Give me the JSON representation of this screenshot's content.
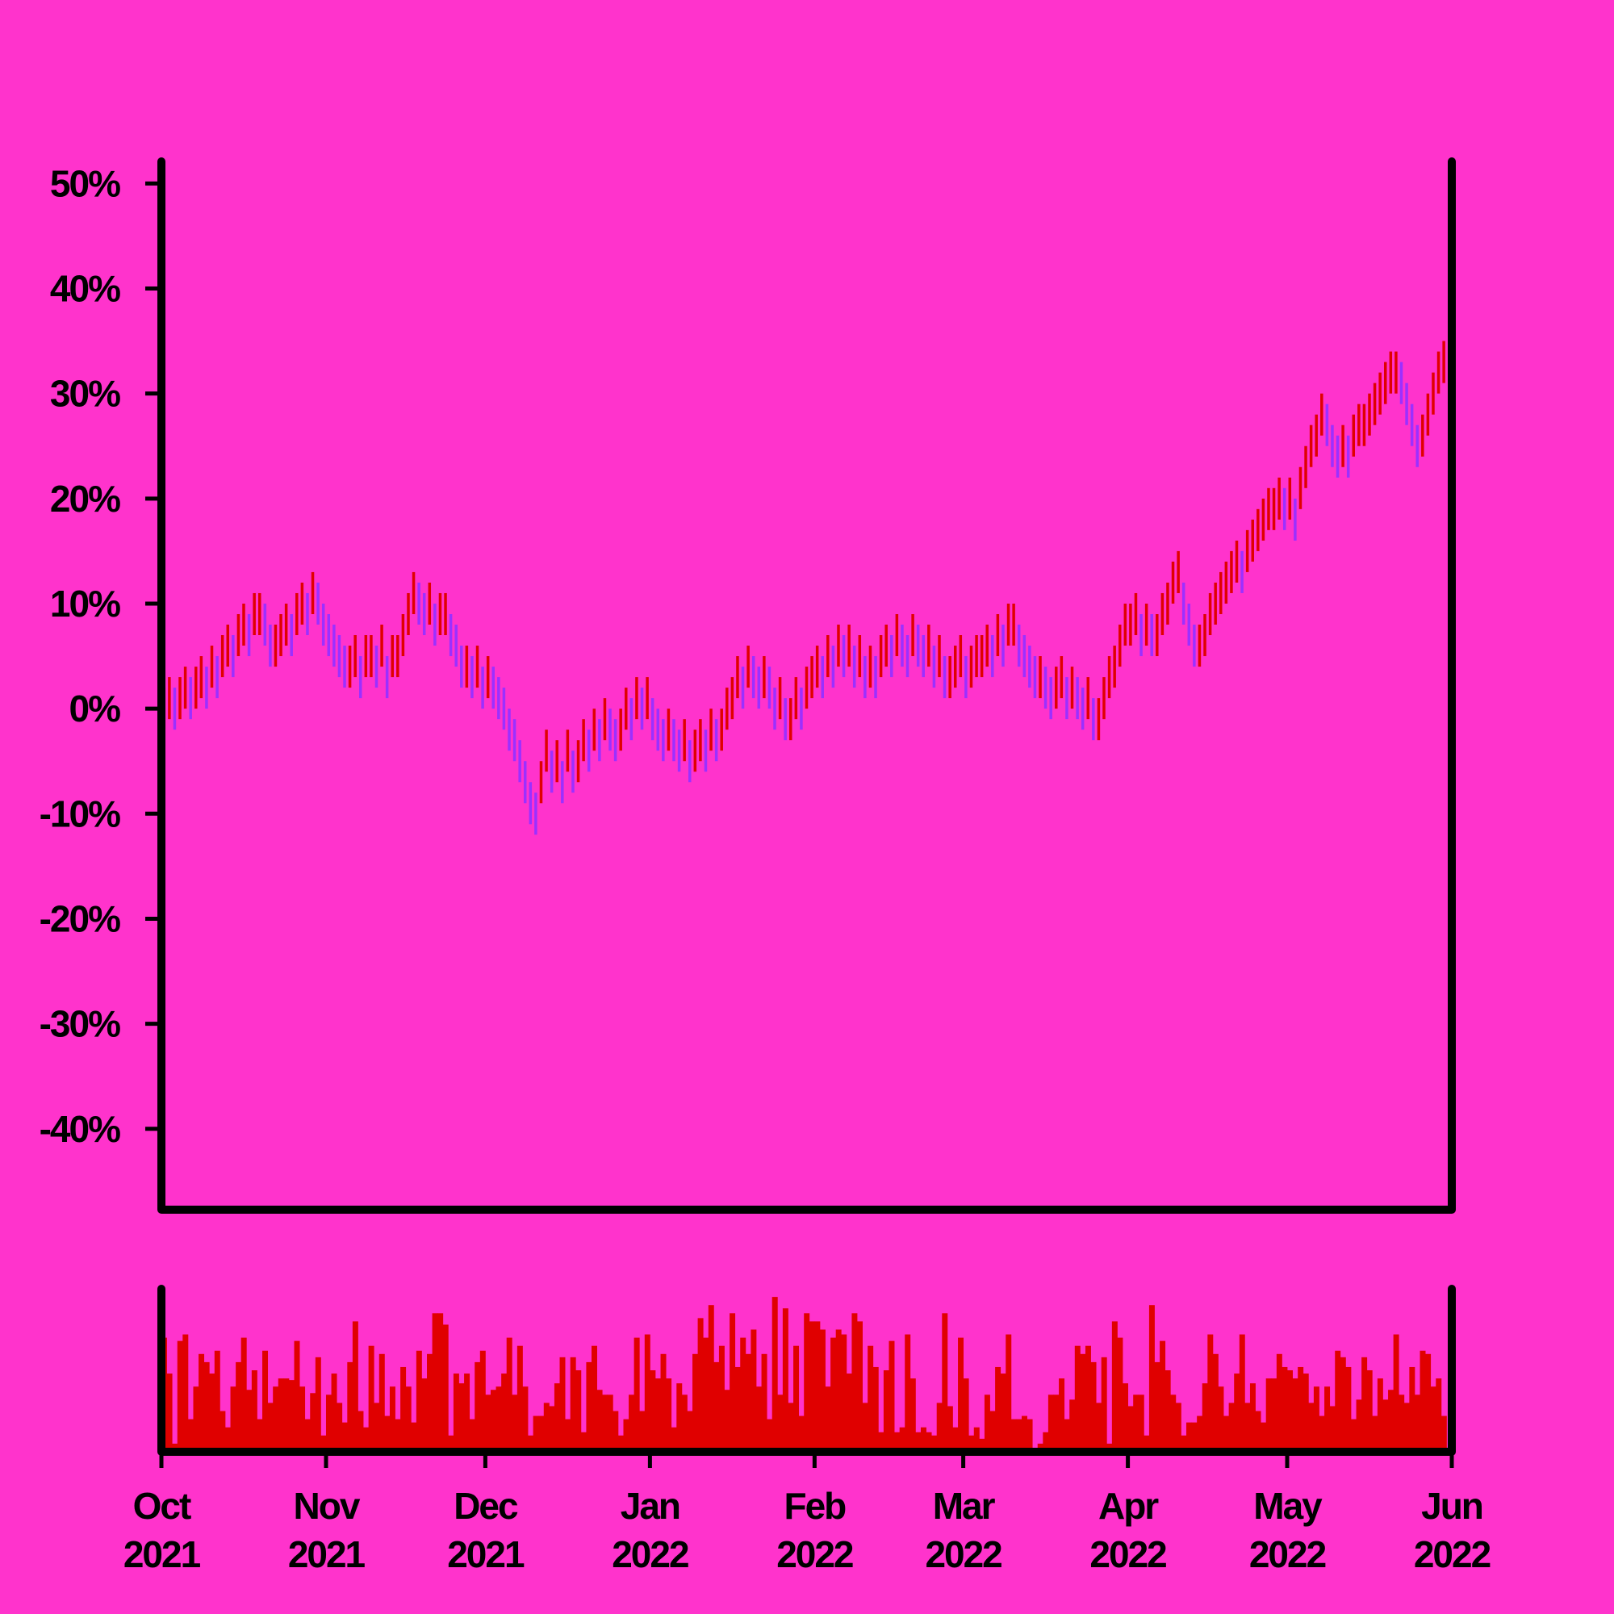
{
  "chart_data": [
    {
      "type": "range",
      "up_color": "#e00000",
      "down_color": "#9b30ff",
      "x": [
        0,
        1,
        2,
        3,
        4,
        5,
        6,
        7,
        8,
        9,
        10,
        11,
        12,
        13,
        14,
        15,
        16,
        17,
        18,
        19,
        20,
        21,
        22,
        23,
        24,
        25,
        26,
        27,
        28,
        29,
        30,
        31,
        32,
        33,
        34,
        35,
        36,
        37,
        38,
        39,
        40,
        41,
        42,
        43,
        44,
        45,
        46,
        47,
        48,
        49,
        50,
        51,
        52,
        53,
        54,
        55,
        56,
        57,
        58,
        59,
        60,
        61,
        62,
        63,
        64,
        65,
        66,
        67,
        68,
        69,
        70,
        71,
        72,
        73,
        74,
        75,
        76,
        77,
        78,
        79,
        80,
        81,
        82,
        83,
        84,
        85,
        86,
        87,
        88,
        89,
        90,
        91,
        92,
        93,
        94,
        95,
        96,
        97,
        98,
        99,
        100,
        101,
        102,
        103,
        104,
        105,
        106,
        107,
        108,
        109,
        110,
        111,
        112,
        113,
        114,
        115,
        116,
        117,
        118,
        119,
        120,
        121,
        122,
        123,
        124,
        125,
        126,
        127,
        128,
        129,
        130,
        131,
        132,
        133,
        134,
        135,
        136,
        137,
        138,
        139,
        140,
        141,
        142,
        143,
        144,
        145,
        146,
        147,
        148,
        149,
        150,
        151,
        152,
        153,
        154,
        155,
        156,
        157,
        158,
        159,
        160,
        161,
        162,
        163,
        164,
        165,
        166,
        167,
        168,
        169,
        170,
        171,
        172,
        173,
        174,
        175,
        176,
        177,
        178,
        179,
        180,
        181,
        182,
        183,
        184,
        185,
        186,
        187,
        188,
        189,
        190,
        191,
        192,
        193,
        194,
        195,
        196,
        197,
        198,
        199,
        200,
        201,
        202,
        203,
        204,
        205,
        206,
        207,
        208,
        209,
        210,
        211,
        212,
        213,
        214,
        215,
        216,
        217,
        218,
        219,
        220,
        221,
        222,
        223,
        224,
        225,
        226,
        227,
        228,
        229,
        230,
        231,
        232,
        233,
        234,
        235,
        236,
        237,
        238,
        239,
        240,
        241
      ],
      "high": [
        2,
        3,
        2,
        3,
        4,
        3,
        4,
        5,
        4,
        6,
        5,
        7,
        8,
        7,
        9,
        10,
        9,
        11,
        11,
        10,
        8,
        8,
        9,
        10,
        9,
        11,
        12,
        11,
        13,
        12,
        10,
        9,
        8,
        7,
        6,
        6,
        7,
        5,
        7,
        7,
        6,
        8,
        5,
        7,
        7,
        9,
        11,
        13,
        12,
        11,
        12,
        10,
        11,
        11,
        9,
        8,
        6,
        6,
        5,
        6,
        4,
        5,
        4,
        3,
        2,
        0,
        -1,
        -3,
        -5,
        -7,
        -8,
        -5,
        -2,
        -4,
        -3,
        -5,
        -2,
        -4,
        -3,
        -1,
        -2,
        0,
        -1,
        1,
        0,
        -1,
        0,
        2,
        1,
        3,
        2,
        3,
        1,
        0,
        -1,
        0,
        -1,
        -2,
        -1,
        -3,
        -2,
        -1,
        -2,
        0,
        -1,
        0,
        2,
        3,
        5,
        4,
        6,
        5,
        4,
        5,
        4,
        2,
        3,
        1,
        1,
        3,
        2,
        4,
        5,
        6,
        5,
        7,
        6,
        8,
        7,
        8,
        6,
        7,
        5,
        6,
        5,
        7,
        8,
        7,
        9,
        8,
        7,
        9,
        8,
        7,
        8,
        6,
        7,
        5,
        5,
        6,
        7,
        5,
        6,
        7,
        7,
        8,
        7,
        9,
        8,
        10,
        10,
        8,
        7,
        6,
        5,
        5,
        4,
        3,
        4,
        5,
        3,
        4,
        3,
        2,
        3,
        1,
        1,
        3,
        5,
        6,
        8,
        10,
        10,
        11,
        9,
        10,
        9,
        9,
        11,
        12,
        14,
        15,
        12,
        10,
        8,
        8,
        9,
        11,
        12,
        13,
        14,
        15,
        16,
        15,
        17,
        18,
        19,
        20,
        21,
        21,
        22,
        21,
        22,
        20,
        23,
        25,
        27,
        28,
        30,
        29,
        27,
        26,
        27,
        26,
        28,
        29,
        29,
        30,
        31,
        32,
        33,
        34,
        34,
        33,
        31,
        29,
        27,
        28,
        30,
        32,
        34,
        35
      ],
      "low": [
        -2,
        -1,
        -2,
        -1,
        0,
        -1,
        0,
        1,
        0,
        2,
        1,
        3,
        4,
        3,
        5,
        6,
        5,
        7,
        7,
        6,
        4,
        4,
        5,
        6,
        5,
        7,
        8,
        7,
        9,
        8,
        6,
        5,
        4,
        3,
        2,
        2,
        3,
        1,
        3,
        3,
        2,
        4,
        1,
        3,
        3,
        5,
        7,
        9,
        8,
        7,
        8,
        6,
        7,
        7,
        5,
        4,
        2,
        2,
        1,
        2,
        0,
        1,
        0,
        -1,
        -2,
        -4,
        -5,
        -7,
        -9,
        -11,
        -12,
        -9,
        -6,
        -8,
        -7,
        -9,
        -6,
        -8,
        -7,
        -5,
        -6,
        -4,
        -5,
        -3,
        -4,
        -5,
        -4,
        -2,
        -3,
        -1,
        -2,
        -1,
        -3,
        -4,
        -5,
        -4,
        -5,
        -6,
        -5,
        -7,
        -6,
        -5,
        -6,
        -4,
        -5,
        -4,
        -2,
        -1,
        1,
        0,
        2,
        1,
        0,
        1,
        0,
        -2,
        -1,
        -3,
        -3,
        -1,
        -2,
        0,
        1,
        2,
        1,
        3,
        2,
        4,
        3,
        4,
        2,
        3,
        1,
        2,
        1,
        3,
        4,
        3,
        5,
        4,
        3,
        5,
        4,
        3,
        4,
        2,
        3,
        1,
        1,
        2,
        3,
        1,
        2,
        3,
        3,
        4,
        3,
        5,
        4,
        6,
        6,
        4,
        3,
        2,
        1,
        1,
        0,
        -1,
        0,
        1,
        -1,
        0,
        -1,
        -2,
        -1,
        -3,
        -3,
        -1,
        1,
        2,
        4,
        6,
        6,
        7,
        5,
        6,
        5,
        5,
        7,
        8,
        10,
        11,
        8,
        6,
        4,
        4,
        5,
        7,
        8,
        9,
        10,
        11,
        12,
        11,
        13,
        14,
        15,
        16,
        17,
        17,
        18,
        17,
        18,
        16,
        19,
        21,
        23,
        24,
        26,
        25,
        23,
        22,
        23,
        22,
        24,
        25,
        25,
        26,
        27,
        28,
        29,
        30,
        30,
        29,
        27,
        25,
        23,
        24,
        26,
        28,
        30,
        31
      ],
      "xlim": [
        0,
        243
      ],
      "ylim": [
        -47.7,
        52.1
      ],
      "yticks": [
        {
          "value": -40,
          "label": "-40%"
        },
        {
          "value": -30,
          "label": "-30%"
        },
        {
          "value": -20,
          "label": "-20%"
        },
        {
          "value": -10,
          "label": "-10%"
        },
        {
          "value": 0,
          "label": "0%"
        },
        {
          "value": 10,
          "label": "10%"
        },
        {
          "value": 20,
          "label": "20%"
        },
        {
          "value": 30,
          "label": "30%"
        },
        {
          "value": 40,
          "label": "40%"
        },
        {
          "value": 50,
          "label": "50%"
        }
      ]
    },
    {
      "type": "bar",
      "color": "#e00000",
      "x": [
        0,
        1,
        2,
        3,
        4,
        5,
        6,
        7,
        8,
        9,
        10,
        11,
        12,
        13,
        14,
        15,
        16,
        17,
        18,
        19,
        20,
        21,
        22,
        23,
        24,
        25,
        26,
        27,
        28,
        29,
        30,
        31,
        32,
        33,
        34,
        35,
        36,
        37,
        38,
        39,
        40,
        41,
        42,
        43,
        44,
        45,
        46,
        47,
        48,
        49,
        50,
        51,
        52,
        53,
        54,
        55,
        56,
        57,
        58,
        59,
        60,
        61,
        62,
        63,
        64,
        65,
        66,
        67,
        68,
        69,
        70,
        71,
        72,
        73,
        74,
        75,
        76,
        77,
        78,
        79,
        80,
        81,
        82,
        83,
        84,
        85,
        86,
        87,
        88,
        89,
        90,
        91,
        92,
        93,
        94,
        95,
        96,
        97,
        98,
        99,
        100,
        101,
        102,
        103,
        104,
        105,
        106,
        107,
        108,
        109,
        110,
        111,
        112,
        113,
        114,
        115,
        116,
        117,
        118,
        119,
        120,
        121,
        122,
        123,
        124,
        125,
        126,
        127,
        128,
        129,
        130,
        131,
        132,
        133,
        134,
        135,
        136,
        137,
        138,
        139,
        140,
        141,
        142,
        143,
        144,
        145,
        146,
        147,
        148,
        149,
        150,
        151,
        152,
        153,
        154,
        155,
        156,
        157,
        158,
        159,
        160,
        161,
        162,
        163,
        164,
        165,
        166,
        167,
        168,
        169,
        170,
        171,
        172,
        173,
        174,
        175,
        176,
        177,
        178,
        179,
        180,
        181,
        182,
        183,
        184,
        185,
        186,
        187,
        188,
        189,
        190,
        191,
        192,
        193,
        194,
        195,
        196,
        197,
        198,
        199,
        200,
        201,
        202,
        203,
        204,
        205,
        206,
        207,
        208,
        209,
        210,
        211,
        212,
        213,
        214,
        215,
        216,
        217,
        218,
        219,
        220,
        221,
        222,
        223,
        224,
        225,
        226,
        227,
        228,
        229,
        230,
        231,
        232,
        233,
        234,
        235,
        236,
        237,
        238,
        239,
        240,
        241
      ],
      "values": [
        70,
        48,
        5,
        68,
        72,
        20,
        40,
        60,
        55,
        48,
        62,
        25,
        15,
        40,
        55,
        70,
        38,
        50,
        20,
        62,
        30,
        40,
        45,
        45,
        44,
        68,
        40,
        20,
        36,
        58,
        10,
        35,
        48,
        30,
        18,
        55,
        80,
        25,
        15,
        65,
        30,
        60,
        22,
        40,
        20,
        52,
        40,
        18,
        62,
        45,
        60,
        85,
        85,
        78,
        10,
        48,
        42,
        48,
        20,
        55,
        62,
        35,
        38,
        40,
        48,
        70,
        35,
        65,
        40,
        10,
        22,
        22,
        30,
        28,
        42,
        58,
        20,
        58,
        50,
        12,
        55,
        65,
        38,
        35,
        35,
        25,
        10,
        20,
        35,
        70,
        25,
        72,
        50,
        45,
        60,
        45,
        15,
        42,
        35,
        25,
        60,
        82,
        70,
        90,
        55,
        65,
        38,
        85,
        52,
        70,
        60,
        75,
        40,
        60,
        20,
        95,
        35,
        88,
        30,
        65,
        22,
        85,
        80,
        80,
        75,
        40,
        70,
        75,
        72,
        48,
        85,
        80,
        30,
        65,
        52,
        12,
        50,
        68,
        12,
        15,
        72,
        45,
        12,
        15,
        12,
        10,
        30,
        85,
        28,
        15,
        70,
        45,
        10,
        15,
        8,
        35,
        25,
        52,
        48,
        72,
        20,
        20,
        22,
        20,
        2,
        5,
        12,
        35,
        35,
        45,
        20,
        32,
        65,
        60,
        65,
        55,
        30,
        58,
        5,
        80,
        70,
        42,
        28,
        35,
        35,
        10,
        90,
        55,
        68,
        50,
        35,
        30,
        10,
        18,
        18,
        22,
        42,
        72,
        60,
        40,
        22,
        30,
        48,
        72,
        30,
        42,
        25,
        18,
        45,
        45,
        60,
        52,
        50,
        45,
        52,
        48,
        30,
        40,
        22,
        40,
        28,
        62,
        58,
        52,
        20,
        32,
        58,
        50,
        22,
        45,
        32,
        38,
        72,
        35,
        30,
        52,
        35,
        62,
        60,
        40,
        45,
        22
      ],
      "xlim": [
        0,
        243
      ],
      "ylim": [
        0,
        100
      ],
      "xticks": [
        {
          "value": 0,
          "label": [
            "Oct",
            "2021"
          ]
        },
        {
          "value": 31,
          "label": [
            "Nov",
            "2021"
          ]
        },
        {
          "value": 61,
          "label": [
            "Dec",
            "2021"
          ]
        },
        {
          "value": 92,
          "label": [
            "Jan",
            "2022"
          ]
        },
        {
          "value": 123,
          "label": [
            "Feb",
            "2022"
          ]
        },
        {
          "value": 151,
          "label": [
            "Mar",
            "2022"
          ]
        },
        {
          "value": 182,
          "label": [
            "Apr",
            "2022"
          ]
        },
        {
          "value": 212,
          "label": [
            "May",
            "2022"
          ]
        },
        {
          "value": 243,
          "label": [
            "Jun",
            "2022"
          ]
        }
      ]
    }
  ]
}
